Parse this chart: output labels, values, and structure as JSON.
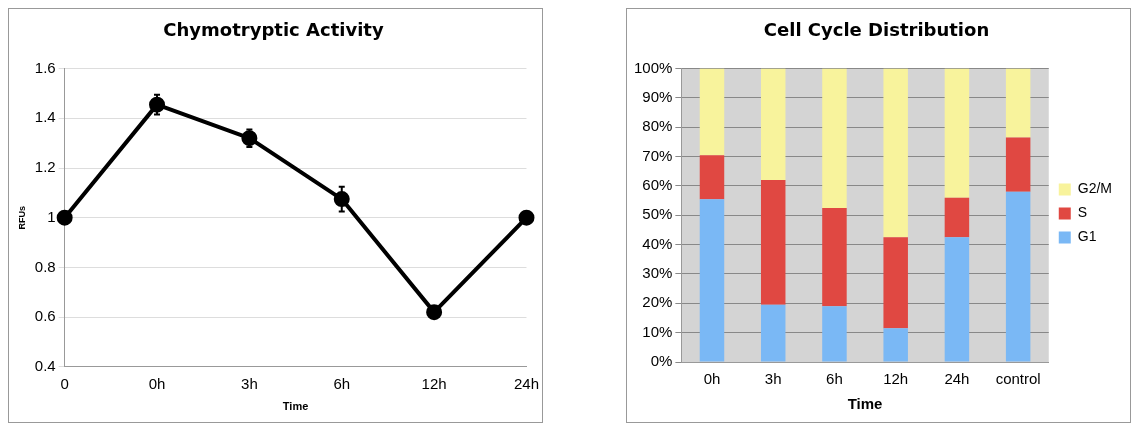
{
  "chart_data": [
    {
      "type": "line",
      "title": "Chymotryptic Activity",
      "xlabel": "Time",
      "ylabel": "RFUs",
      "categories": [
        "0",
        "0h",
        "3h",
        "6h",
        "12h",
        "24h"
      ],
      "series": [
        {
          "color": "#000000",
          "values": [
            1.0,
            1.455,
            1.32,
            1.075,
            0.62,
            1.0
          ],
          "errors": [
            null,
            0.04,
            0.035,
            0.05,
            null,
            null
          ]
        }
      ],
      "ylim": [
        0.4,
        1.6
      ],
      "yticks": [
        0.4,
        0.6,
        0.8,
        1,
        1.2,
        1.4,
        1.6
      ],
      "grid": "y",
      "legend": false,
      "marker": "circle",
      "line_style": "solid"
    },
    {
      "type": "bar",
      "stacked": true,
      "title": "Cell Cycle Distribution",
      "xlabel": "Time",
      "categories": [
        "0h",
        "3h",
        "6h",
        "12h",
        "24h",
        "control"
      ],
      "series": [
        {
          "name": "G1",
          "color": "#7ab8f5",
          "values": [
            55.5,
            19.5,
            19,
            11.5,
            42.5,
            58
          ]
        },
        {
          "name": "S",
          "color": "#e04842",
          "values": [
            15,
            42.5,
            33.5,
            31,
            13.5,
            18.5
          ]
        },
        {
          "name": "G2/M",
          "color": "#f8f39c",
          "values": [
            29.5,
            38,
            47.5,
            57.5,
            44,
            23.5
          ]
        }
      ],
      "ylim": [
        0,
        100
      ],
      "yticks": [
        {
          "value": 0,
          "label": "0%"
        },
        {
          "value": 10,
          "label": "10%"
        },
        {
          "value": 20,
          "label": "20%"
        },
        {
          "value": 30,
          "label": "30%"
        },
        {
          "value": 40,
          "label": "40%"
        },
        {
          "value": 50,
          "label": "50%"
        },
        {
          "value": 60,
          "label": "60%"
        },
        {
          "value": 70,
          "label": "70%"
        },
        {
          "value": 80,
          "label": "80%"
        },
        {
          "value": 90,
          "label": "90%"
        },
        {
          "value": 100,
          "label": "100%"
        }
      ],
      "grid": "y",
      "legend": "right"
    }
  ]
}
